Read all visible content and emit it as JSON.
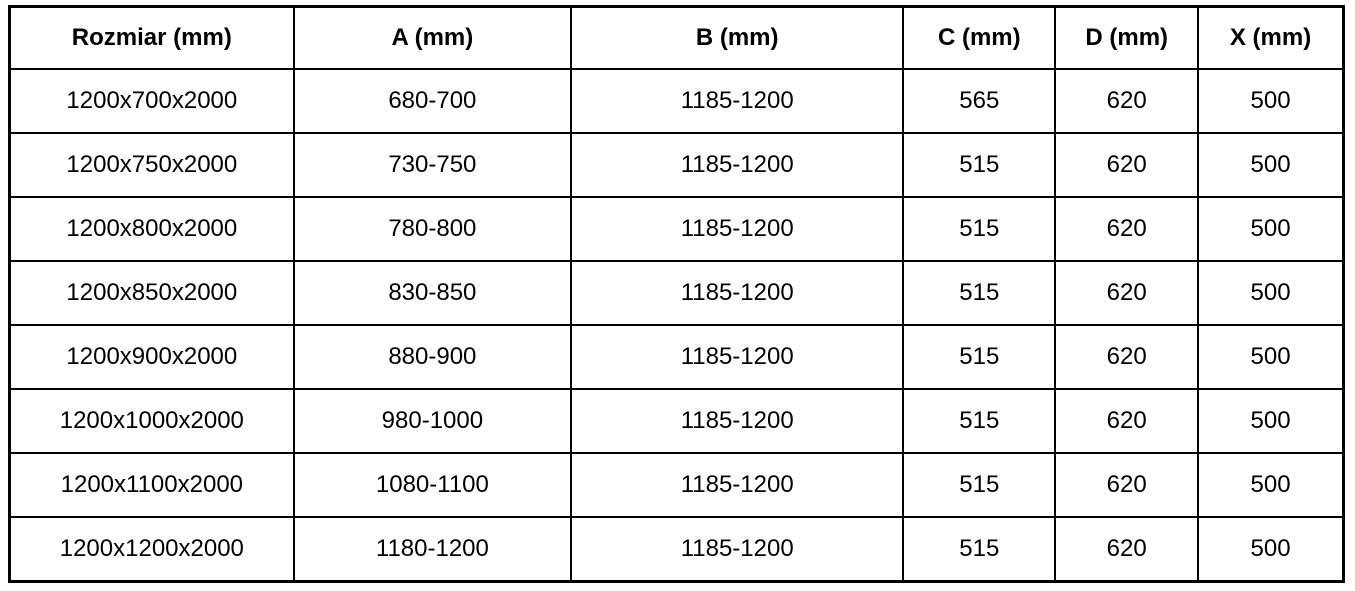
{
  "table": {
    "headers": [
      "Rozmiar (mm)",
      "A (mm)",
      "B (mm)",
      "C (mm)",
      "D (mm)",
      "X (mm)"
    ],
    "rows": [
      [
        "1200x700x2000",
        "680-700",
        "1185-1200",
        "565",
        "620",
        "500"
      ],
      [
        "1200x750x2000",
        "730-750",
        "1185-1200",
        "515",
        "620",
        "500"
      ],
      [
        "1200x800x2000",
        "780-800",
        "1185-1200",
        "515",
        "620",
        "500"
      ],
      [
        "1200x850x2000",
        "830-850",
        "1185-1200",
        "515",
        "620",
        "500"
      ],
      [
        "1200x900x2000",
        "880-900",
        "1185-1200",
        "515",
        "620",
        "500"
      ],
      [
        "1200x1000x2000",
        "980-1000",
        "1185-1200",
        "515",
        "620",
        "500"
      ],
      [
        "1200x1100x2000",
        "1080-1100",
        "1185-1200",
        "515",
        "620",
        "500"
      ],
      [
        "1200x1200x2000",
        "1180-1200",
        "1185-1200",
        "515",
        "620",
        "500"
      ]
    ],
    "colors": {
      "border": "#000000",
      "text": "#000000",
      "background": "#ffffff"
    }
  },
  "chart_data": {
    "type": "table",
    "title": "",
    "columns": [
      "Rozmiar (mm)",
      "A (mm)",
      "B (mm)",
      "C (mm)",
      "D (mm)",
      "X (mm)"
    ],
    "rows": [
      [
        "1200x700x2000",
        "680-700",
        "1185-1200",
        565,
        620,
        500
      ],
      [
        "1200x750x2000",
        "730-750",
        "1185-1200",
        515,
        620,
        500
      ],
      [
        "1200x800x2000",
        "780-800",
        "1185-1200",
        515,
        620,
        500
      ],
      [
        "1200x850x2000",
        "830-850",
        "1185-1200",
        515,
        620,
        500
      ],
      [
        "1200x900x2000",
        "880-900",
        "1185-1200",
        515,
        620,
        500
      ],
      [
        "1200x1000x2000",
        "980-1000",
        "1185-1200",
        515,
        620,
        500
      ],
      [
        "1200x1100x2000",
        "1080-1100",
        "1185-1200",
        515,
        620,
        500
      ],
      [
        "1200x1200x2000",
        "1180-1200",
        "1185-1200",
        515,
        620,
        500
      ]
    ]
  }
}
